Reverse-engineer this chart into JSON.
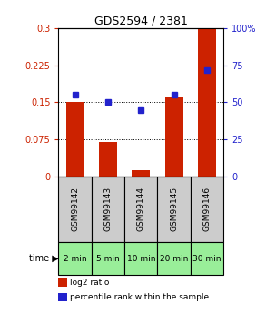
{
  "title": "GDS2594 / 2381",
  "samples": [
    "GSM99142",
    "GSM99143",
    "GSM99144",
    "GSM99145",
    "GSM99146"
  ],
  "time_labels": [
    "2 min",
    "5 min",
    "10 min",
    "20 min",
    "30 min"
  ],
  "log2_ratio": [
    0.15,
    0.07,
    0.012,
    0.16,
    0.3
  ],
  "percentile_rank": [
    55,
    50,
    45,
    55,
    72
  ],
  "left_yticks": [
    0,
    0.075,
    0.15,
    0.225,
    0.3
  ],
  "left_yticklabels": [
    "0",
    "0.075",
    "0.15",
    "0.225",
    "0.3"
  ],
  "right_yticks": [
    0,
    25,
    50,
    75,
    100
  ],
  "right_yticklabels": [
    "0",
    "25",
    "50",
    "75",
    "100%"
  ],
  "bar_color": "#cc2200",
  "dot_color": "#2222cc",
  "bar_width": 0.55,
  "sample_box_color": "#cccccc",
  "time_box_color": "#99ee99",
  "legend_bar_label": "log2 ratio",
  "legend_dot_label": "percentile rank within the sample"
}
